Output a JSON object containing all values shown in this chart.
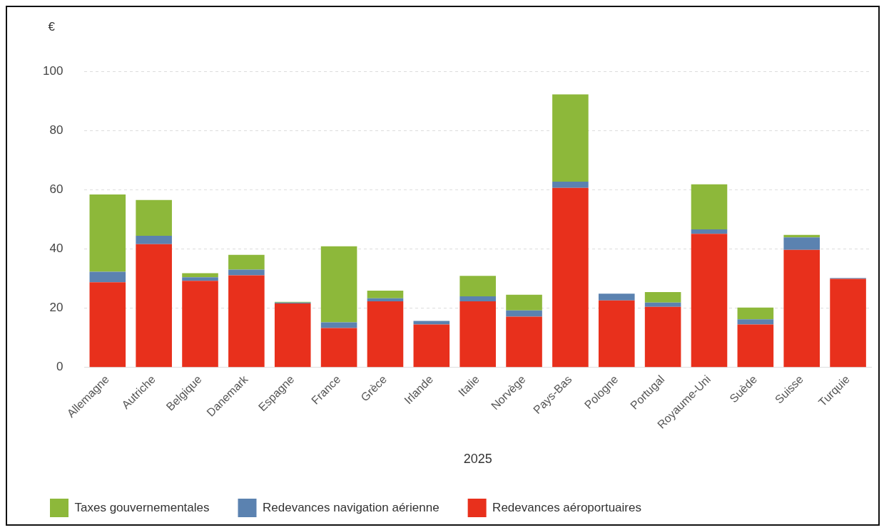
{
  "chart_data": {
    "type": "bar",
    "stacked": true,
    "xlabel": "2025",
    "ylabel": "€",
    "categories": [
      "Allemagne",
      "Autriche",
      "Belgique",
      "Danemark",
      "Espagne",
      "France",
      "Grèce",
      "Irlande",
      "Italie",
      "Norvège",
      "Pays-Bas",
      "Pologne",
      "Portugal",
      "Royaume-Uni",
      "Suède",
      "Suisse",
      "Turquie"
    ],
    "series": [
      {
        "name": "Redevances aéroportuaires",
        "color": "#e8301c",
        "values": [
          28.7,
          41.6,
          29.2,
          31.1,
          21.6,
          13.3,
          22.3,
          14.5,
          22.3,
          17.1,
          60.6,
          22.6,
          20.4,
          45.1,
          14.5,
          39.7,
          29.9
        ]
      },
      {
        "name": "Redevances navigation aérienne",
        "color": "#5b82b0",
        "values": [
          3.6,
          2.8,
          1.2,
          1.9,
          0.3,
          1.9,
          1.0,
          1.2,
          1.7,
          2.1,
          2.1,
          2.3,
          1.5,
          1.5,
          1.7,
          4.2,
          0.3
        ]
      },
      {
        "name": "Taxes gouvernementales",
        "color": "#8db83a",
        "values": [
          26.1,
          12.1,
          1.4,
          5.0,
          0.2,
          25.7,
          2.6,
          0,
          6.9,
          5.3,
          29.5,
          0,
          3.5,
          15.2,
          4.0,
          0.8,
          0
        ]
      }
    ],
    "ylim": [
      0,
      100
    ],
    "yticks": [
      0,
      20,
      40,
      60,
      80,
      100
    ],
    "grid": "y",
    "legend": "bottom left"
  }
}
